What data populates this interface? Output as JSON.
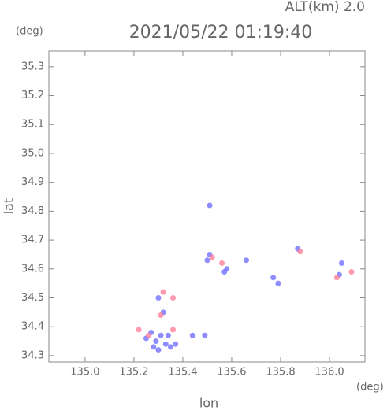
{
  "chart_data": {
    "type": "scatter",
    "title": "2021/05/22 01:19:40",
    "altitude_label": "ALT(km) 2.0",
    "y_unit": "(deg)",
    "x_unit": "(deg)",
    "xlabel": "lon",
    "ylabel": "lat",
    "xlim": [
      134.852,
      136.145
    ],
    "ylim": [
      34.278,
      35.354
    ],
    "xticks": [
      {
        "value": 135.0,
        "label": "135.0"
      },
      135.2,
      135.4,
      135.6,
      135.8,
      {
        "value": 136.0,
        "label": "136.0"
      }
    ],
    "yticks": [
      34.3,
      34.4,
      34.5,
      34.6,
      34.7,
      34.8,
      34.9,
      {
        "value": 35.0,
        "label": "35.0"
      },
      35.1,
      35.2,
      35.3
    ],
    "series": [
      {
        "color": "#7070ff",
        "x": [
          135.25,
          135.28,
          135.3,
          135.33,
          135.35,
          135.37,
          135.27,
          135.31,
          135.29,
          135.34,
          135.51,
          135.51,
          135.5,
          135.57,
          135.58,
          135.66,
          135.77,
          135.79,
          135.87,
          136.04,
          136.05,
          135.44,
          135.49,
          135.32,
          135.3
        ],
        "y": [
          34.36,
          34.33,
          34.32,
          34.34,
          34.33,
          34.34,
          34.38,
          34.37,
          34.35,
          34.37,
          34.82,
          34.65,
          34.63,
          34.59,
          34.6,
          34.63,
          34.57,
          34.55,
          34.67,
          34.58,
          34.62,
          34.37,
          34.37,
          34.45,
          34.5
        ]
      },
      {
        "color": "#ff7f9a",
        "x": [
          135.22,
          135.31,
          135.36,
          135.32,
          135.52,
          135.56,
          135.88,
          136.09,
          136.03,
          135.26,
          135.36
        ],
        "y": [
          34.39,
          34.44,
          34.5,
          34.52,
          34.64,
          34.62,
          34.66,
          34.59,
          34.57,
          34.37,
          34.39
        ]
      }
    ]
  }
}
